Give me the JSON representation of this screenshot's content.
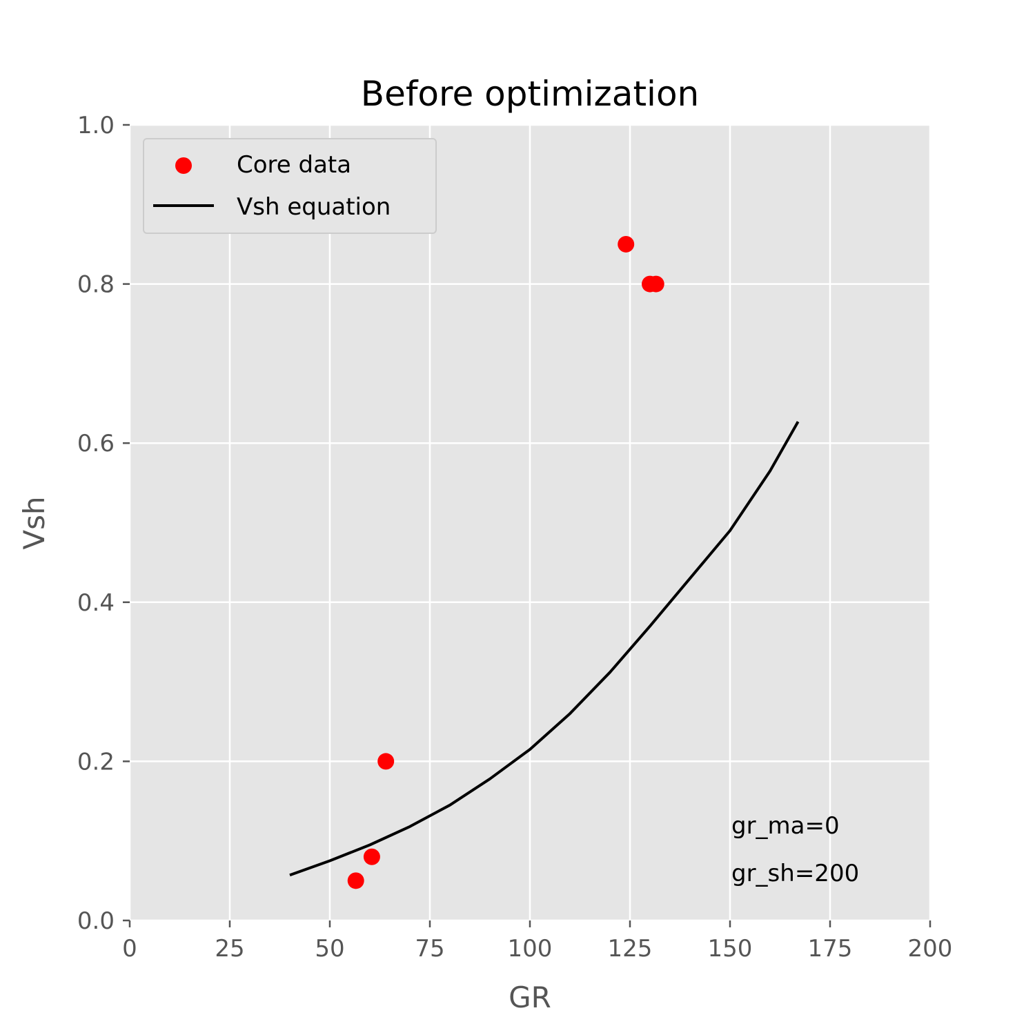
{
  "chart_data": {
    "type": "scatter",
    "title": "Before optimization",
    "xlabel": "GR",
    "ylabel": "Vsh",
    "xlim": [
      0,
      200
    ],
    "ylim": [
      0,
      1.0
    ],
    "xticks": [
      "0",
      "25",
      "50",
      "75",
      "100",
      "125",
      "150",
      "175",
      "200"
    ],
    "yticks": [
      "0.0",
      "0.2",
      "0.4",
      "0.6",
      "0.8",
      "1.0"
    ],
    "grid": true,
    "legend_position": "upper-left",
    "series": [
      {
        "name": "Core data",
        "kind": "scatter",
        "color": "#ff0000",
        "points": [
          [
            56.5,
            0.05
          ],
          [
            60.5,
            0.08
          ],
          [
            64.0,
            0.2
          ],
          [
            124.0,
            0.85
          ],
          [
            130.0,
            0.8
          ],
          [
            131.5,
            0.8
          ]
        ]
      },
      {
        "name": "Vsh equation",
        "kind": "line",
        "color": "#000000",
        "points": [
          [
            40,
            0.057
          ],
          [
            50,
            0.075
          ],
          [
            60,
            0.095
          ],
          [
            70,
            0.118
          ],
          [
            80,
            0.145
          ],
          [
            90,
            0.178
          ],
          [
            100,
            0.215
          ],
          [
            110,
            0.26
          ],
          [
            120,
            0.312
          ],
          [
            130,
            0.37
          ],
          [
            140,
            0.43
          ],
          [
            150,
            0.49
          ],
          [
            160,
            0.565
          ],
          [
            167,
            0.627
          ]
        ]
      }
    ],
    "annotations": [
      "gr_ma=0",
      "gr_sh=200"
    ]
  }
}
